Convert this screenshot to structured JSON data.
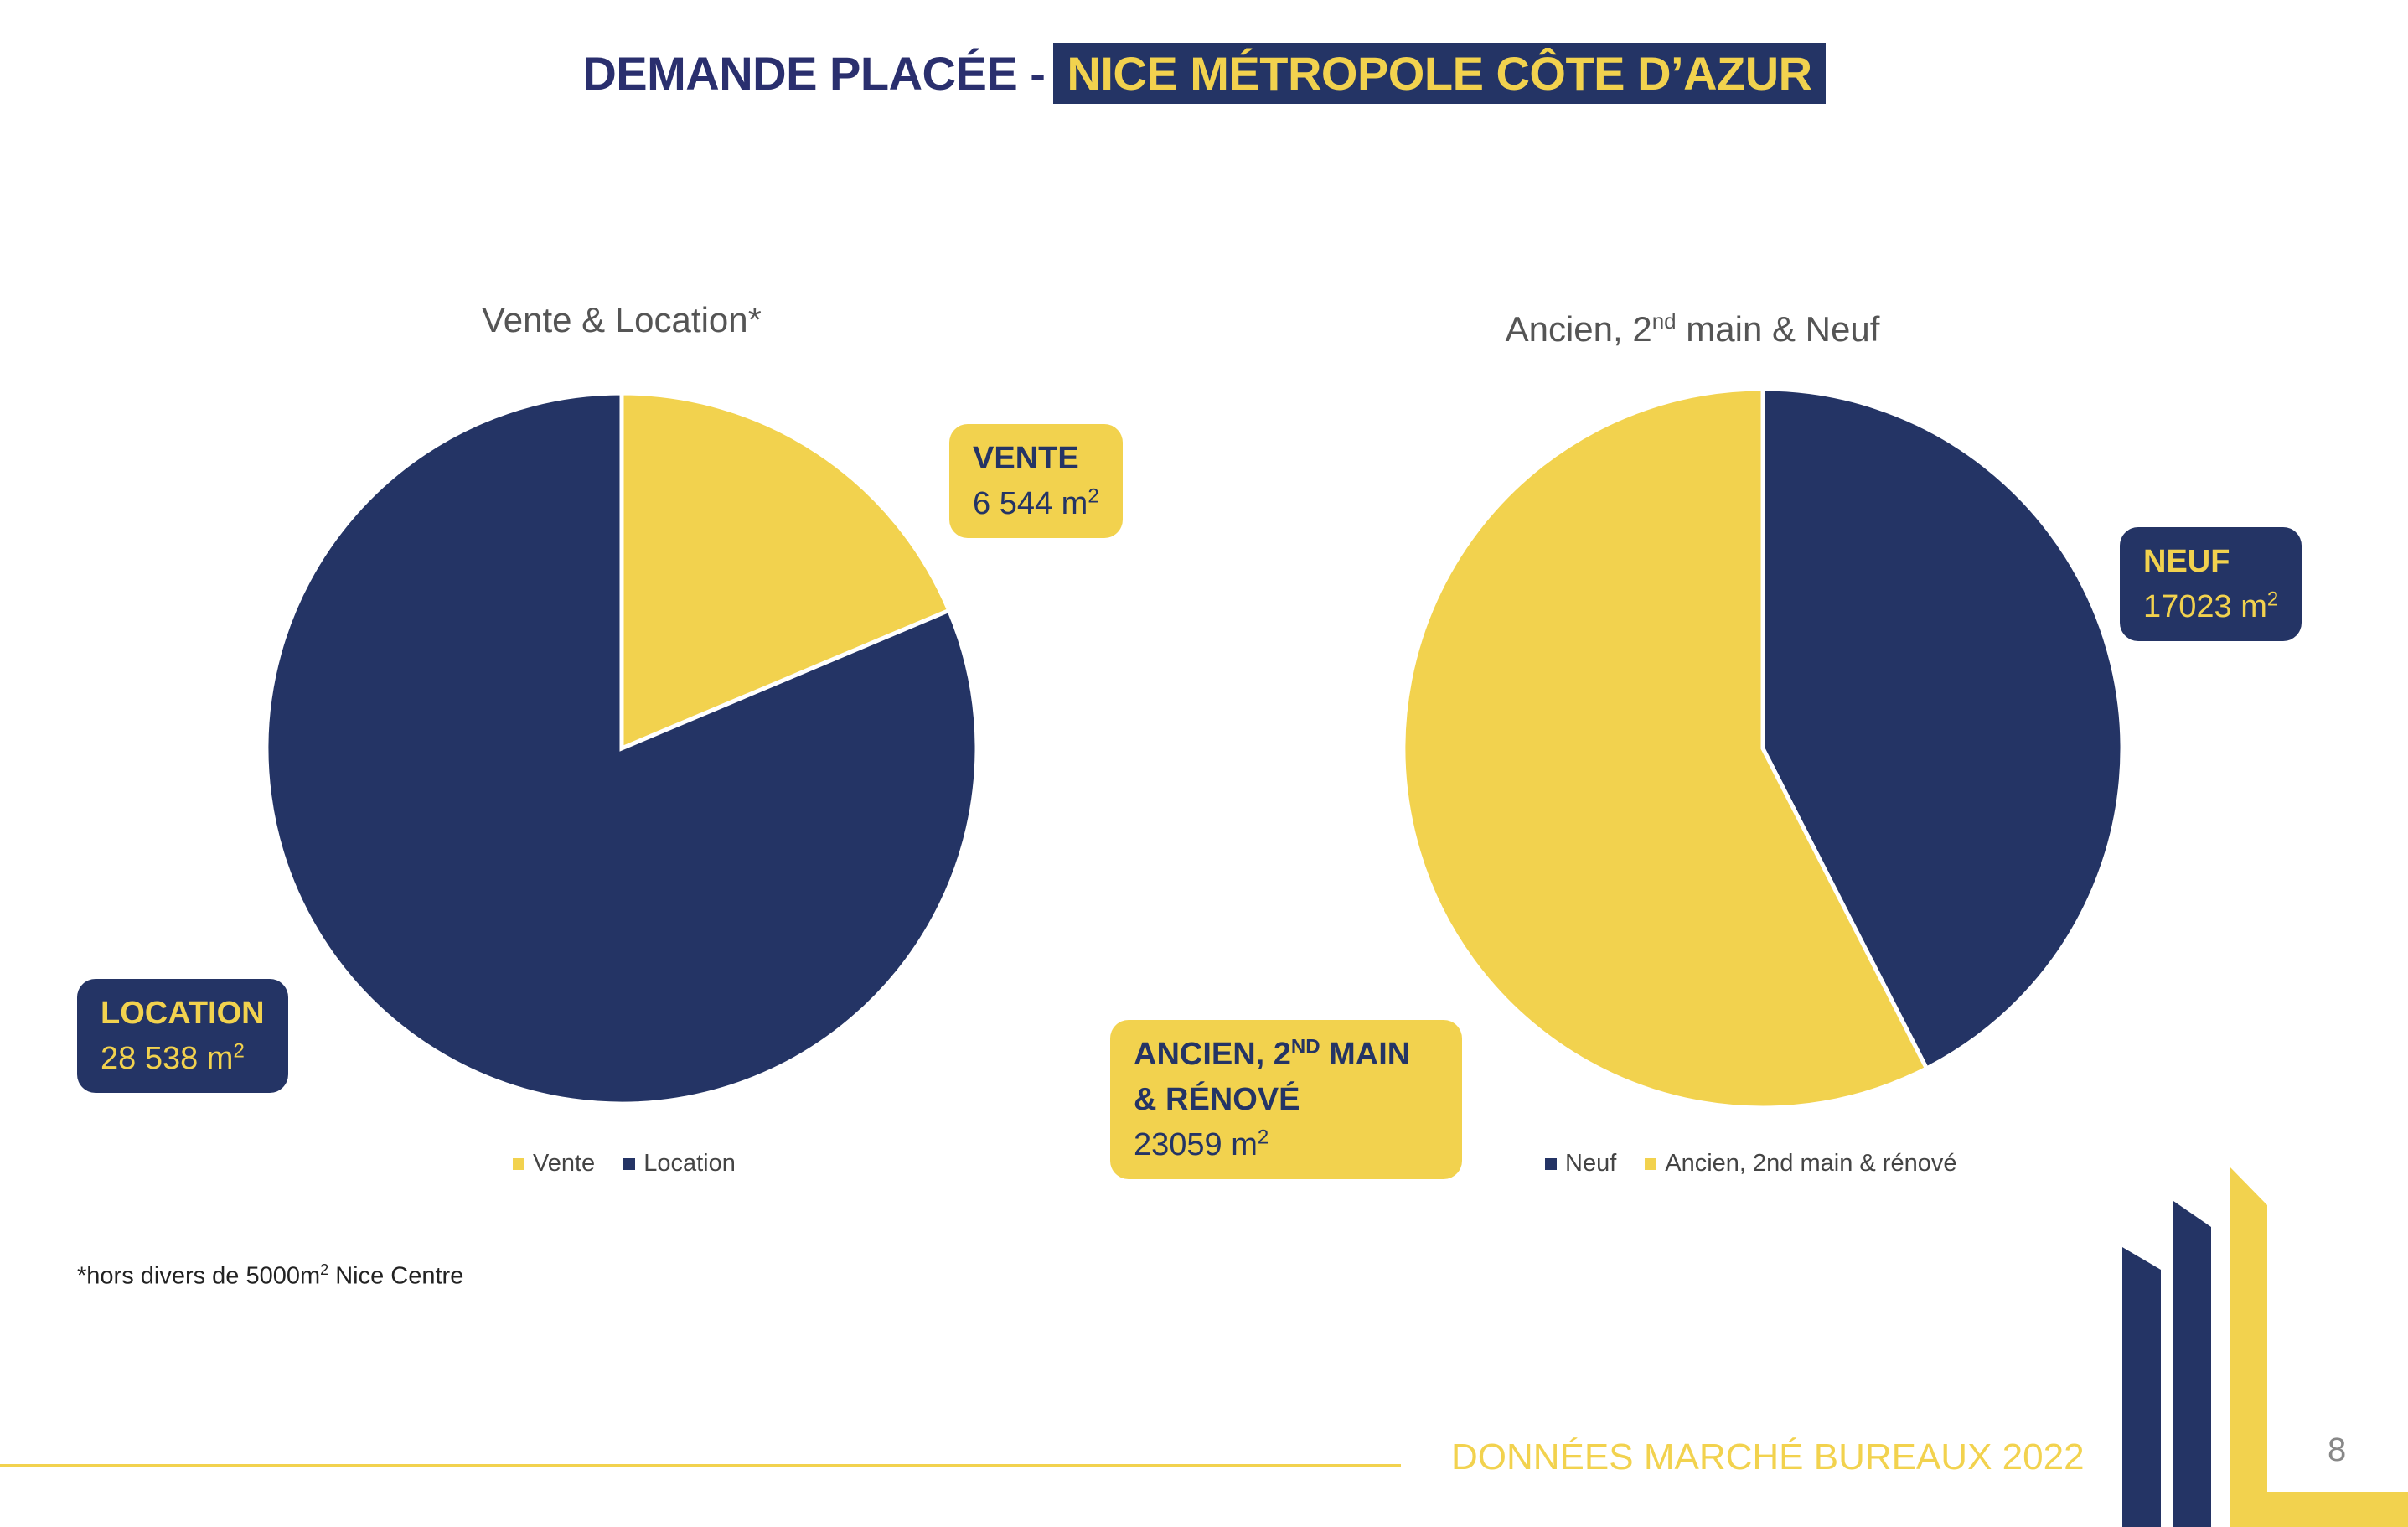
{
  "title": {
    "plain": "DEMANDE PLACÉE -",
    "highlight": "NICE MÉTROPOLE CÔTE D’AZUR"
  },
  "colors": {
    "navy": "#243465",
    "yellow": "#F2D24E"
  },
  "chart_data": [
    {
      "type": "pie",
      "title": "Vente & Location*",
      "categories": [
        "Vente",
        "Location"
      ],
      "values": [
        6544,
        28538
      ],
      "unit": "m²",
      "colors": [
        "#F2D24E",
        "#243465"
      ],
      "legend": "bottom",
      "labels": [
        {
          "name": "VENTE",
          "value": "6 544 m",
          "sup": "2"
        },
        {
          "name": "LOCATION",
          "value": "28 538 m",
          "sup": "2"
        }
      ]
    },
    {
      "type": "pie",
      "title_parts": [
        "Ancien, 2",
        "nd",
        " main & Neuf"
      ],
      "categories": [
        "Neuf",
        "Ancien, 2nd main & rénové"
      ],
      "values": [
        17023,
        23059
      ],
      "unit": "m²",
      "colors": [
        "#243465",
        "#F2D24E"
      ],
      "legend": "bottom",
      "labels": [
        {
          "name": "NEUF",
          "value": "17023 m",
          "sup": "2"
        },
        {
          "name_parts": [
            "ANCIEN, 2",
            "ND",
            " MAIN"
          ],
          "name2": "& RÉNOVÉ",
          "value": "23059 m",
          "sup": "2"
        }
      ]
    }
  ],
  "footnote": {
    "pre": "*hors divers de 5000m",
    "sup": "2",
    "post": " Nice Centre"
  },
  "footer": {
    "text": "DONNÉES MARCHÉ BUREAUX 2022",
    "page": "8"
  }
}
